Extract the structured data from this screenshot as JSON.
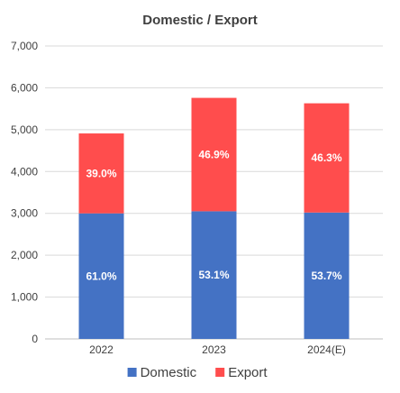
{
  "chart_data": {
    "type": "bar",
    "stacked": true,
    "title": "Domestic / Export",
    "categories": [
      "2022",
      "2023",
      "2024(E)"
    ],
    "series": [
      {
        "name": "Domestic",
        "color": "#4472C4",
        "values": [
          3000,
          3050,
          3020
        ],
        "labels": [
          "61.0%",
          "53.1%",
          "53.7%"
        ]
      },
      {
        "name": "Export",
        "color": "#FF4D4D",
        "values": [
          1910,
          2710,
          2610
        ],
        "labels": [
          "39.0%",
          "46.9%",
          "46.3%"
        ]
      }
    ],
    "ylim": [
      0,
      7000
    ],
    "yticks": [
      0,
      1000,
      2000,
      3000,
      4000,
      5000,
      6000,
      7000
    ],
    "ytick_labels": [
      "0",
      "1,000",
      "2,000",
      "3,000",
      "4,000",
      "5,000",
      "6,000",
      "7,000"
    ],
    "grid": true,
    "legend_position": "bottom"
  }
}
